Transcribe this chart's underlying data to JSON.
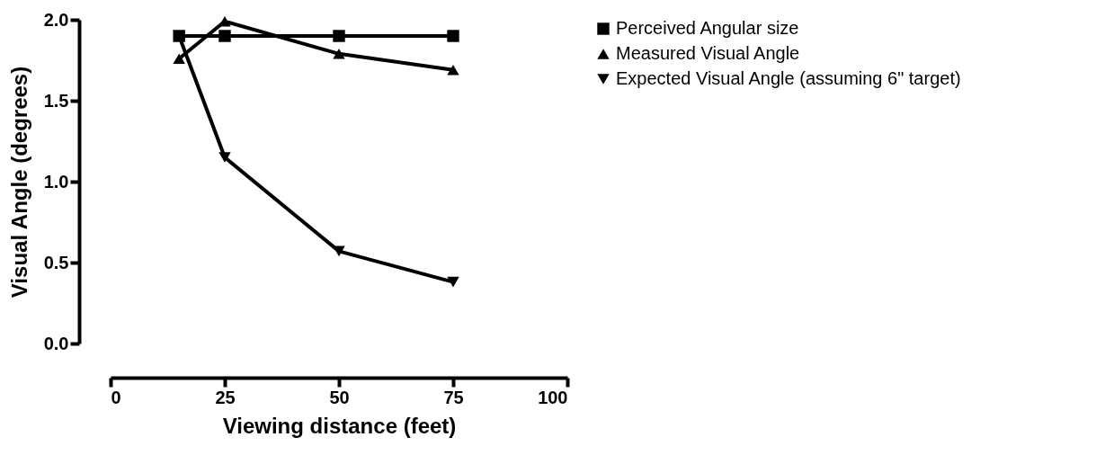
{
  "chart_data": {
    "type": "line",
    "xlabel": "Viewing distance (feet)",
    "ylabel": "Visual Angle (degrees)",
    "x": [
      15,
      25,
      50,
      75
    ],
    "series": [
      {
        "name": "Perceived Angular size",
        "color": "#000000",
        "marker": "square",
        "values": [
          1.9,
          1.9,
          1.9,
          1.9
        ]
      },
      {
        "name": "Measured Visual Angle",
        "color": "#000000",
        "marker": "triangle",
        "values": [
          1.76,
          1.99,
          1.79,
          1.69
        ]
      },
      {
        "name": "Expected Visual Angle (assuming 6\" target)",
        "color": "#000000",
        "marker": "triangle-down",
        "values": [
          1.9,
          1.15,
          0.57,
          0.38
        ]
      }
    ],
    "xlim": [
      0,
      100
    ],
    "xticks": [
      0,
      25,
      50,
      75,
      100
    ],
    "ylim": [
      0,
      2.0
    ],
    "yticks": [
      {
        "value": 0,
        "label": "0.0"
      },
      {
        "value": 0.5,
        "label": "0.5"
      },
      {
        "value": 1.0,
        "label": "1.0"
      },
      {
        "value": 1.5,
        "label": "1.5"
      },
      {
        "value": 2.0,
        "label": "2.0"
      }
    ],
    "grid": false,
    "legend": "right",
    "line_style": "solid"
  }
}
